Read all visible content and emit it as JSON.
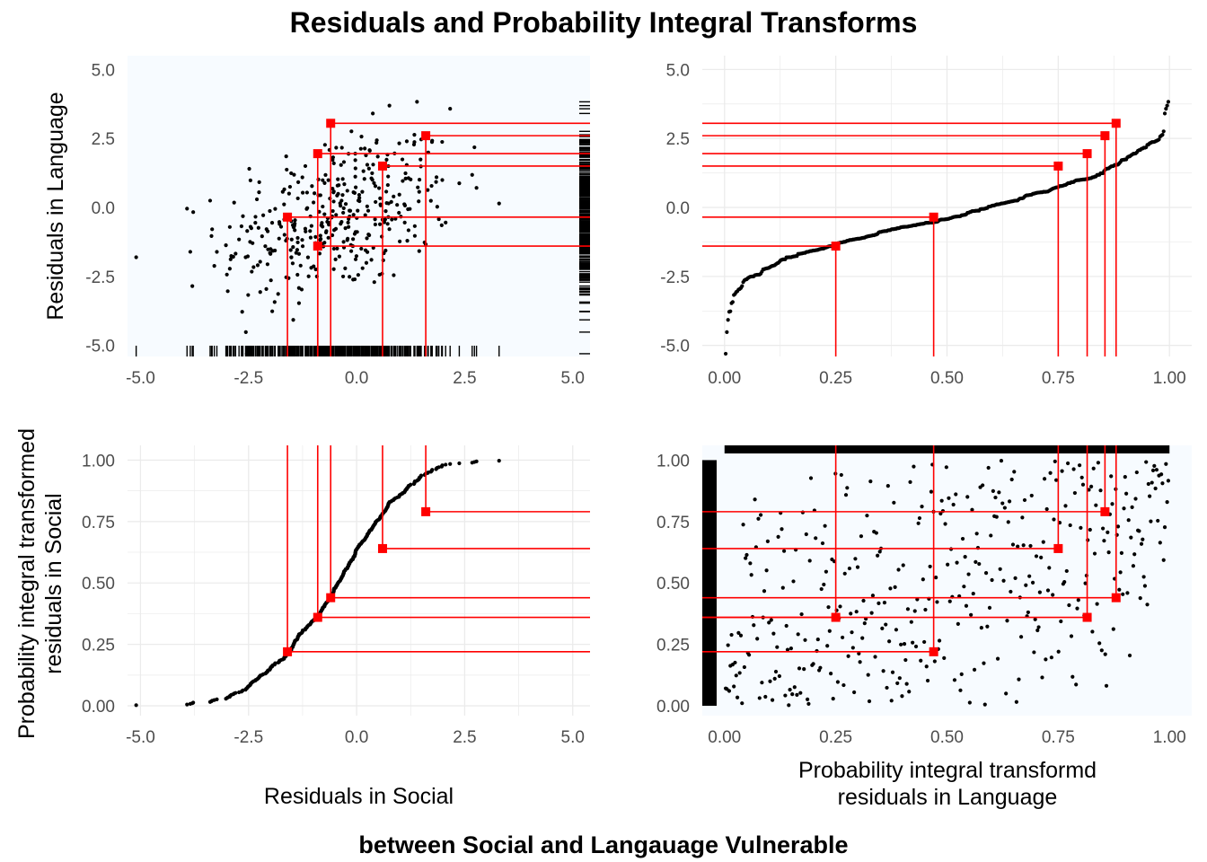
{
  "title": "Residuals and Probability Integral Transforms",
  "caption": "between Social and Langauage Vulnerable",
  "colors": {
    "density_ramp": [
      "#f7fbff",
      "#deebf7",
      "#c6dbef",
      "#9ecae1",
      "#6baed6",
      "#4292c6",
      "#2171b5",
      "#08519c",
      "#08306b"
    ],
    "points": "#000000",
    "highlight": "#ff0000",
    "grid": "#ebebeb"
  },
  "chart_data": [
    {
      "id": "top-left",
      "type": "scatter",
      "subtype": "2d-density with rug",
      "xlabel": "",
      "ylabel": "Residuals in Language",
      "xlim": [
        -5.3,
        5.4
      ],
      "ylim": [
        -5.4,
        5.5
      ],
      "xticks": [
        "-5.0",
        "-2.5",
        "0.0",
        "2.5",
        "5.0"
      ],
      "yticks": [
        "-5.0",
        "-2.5",
        "0.0",
        "2.5",
        "5.0"
      ],
      "density_center_1": [
        -1.3,
        -0.9
      ],
      "density_center_2": [
        0.6,
        0.5
      ],
      "highlight_x": [
        -1.6,
        -0.9,
        -0.6,
        0.6,
        1.6
      ],
      "highlight_y": [
        -0.35,
        1.95,
        3.05,
        1.5,
        2.6
      ],
      "highlight_y_lower": -1.4
    },
    {
      "id": "top-right",
      "type": "scatter",
      "subtype": "sorted quantiles",
      "xlabel": "",
      "ylabel": "",
      "xlim": [
        -0.05,
        1.05
      ],
      "ylim": [
        -5.4,
        5.5
      ],
      "xticks": [
        "0.00",
        "0.25",
        "0.50",
        "0.75",
        "1.00"
      ],
      "yticks": [
        "-5.0",
        "-2.5",
        "0.0",
        "2.5",
        "5.0"
      ],
      "highlight_points": [
        [
          0.25,
          -1.4
        ],
        [
          0.47,
          -0.35
        ],
        [
          0.75,
          1.5
        ],
        [
          0.815,
          1.95
        ],
        [
          0.855,
          2.6
        ],
        [
          0.88,
          3.05
        ]
      ]
    },
    {
      "id": "bottom-left",
      "type": "scatter",
      "subtype": "empirical CDF",
      "xlabel": "Residuals in Social",
      "ylabel": "Probability integral transformed\nresiduals in Social",
      "xlim": [
        -5.3,
        5.4
      ],
      "ylim": [
        -0.04,
        1.06
      ],
      "xticks": [
        "-5.0",
        "-2.5",
        "0.0",
        "2.5",
        "5.0"
      ],
      "yticks": [
        "0.00",
        "0.25",
        "0.50",
        "0.75",
        "1.00"
      ],
      "highlight_points": [
        [
          -1.6,
          0.22
        ],
        [
          -0.9,
          0.36
        ],
        [
          -0.6,
          0.44
        ],
        [
          0.6,
          0.64
        ],
        [
          1.6,
          0.79
        ]
      ]
    },
    {
      "id": "bottom-right",
      "type": "scatter",
      "subtype": "2d-density of PIT values with rug",
      "xlabel": "Probability integral transformd\nresiduals in Language",
      "ylabel": "",
      "xlim": [
        -0.05,
        1.05
      ],
      "ylim": [
        -0.04,
        1.06
      ],
      "xticks": [
        "0.00",
        "0.25",
        "0.50",
        "0.75",
        "1.00"
      ],
      "yticks": [
        "0.00",
        "0.25",
        "0.50",
        "0.75",
        "1.00"
      ],
      "density_center_1": [
        0.27,
        0.23
      ],
      "density_center_2": [
        0.7,
        0.7
      ],
      "highlight_points": [
        [
          0.25,
          0.36
        ],
        [
          0.47,
          0.22
        ],
        [
          0.75,
          0.64
        ],
        [
          0.815,
          0.36
        ],
        [
          0.855,
          0.79
        ],
        [
          0.88,
          0.44
        ]
      ]
    }
  ]
}
